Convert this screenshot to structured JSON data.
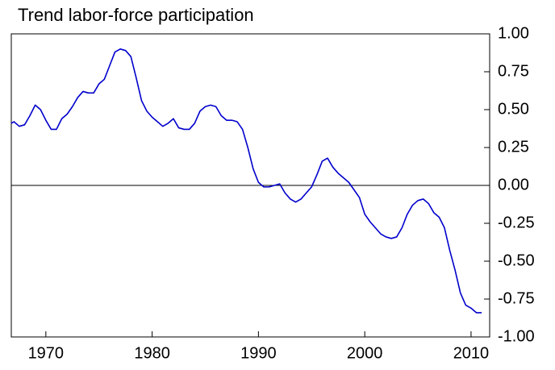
{
  "chart_data": {
    "type": "line",
    "title": "Trend labor-force participation",
    "x": [
      1966.75,
      1967,
      1967.5,
      1968,
      1968.5,
      1969,
      1969.5,
      1970,
      1970.5,
      1971,
      1971.5,
      1972,
      1972.5,
      1973,
      1973.5,
      1974,
      1974.5,
      1975,
      1975.5,
      1976,
      1976.5,
      1977,
      1977.5,
      1978,
      1978.5,
      1979,
      1979.5,
      1980,
      1980.5,
      1981,
      1981.5,
      1982,
      1982.5,
      1983,
      1983.5,
      1984,
      1984.5,
      1985,
      1985.5,
      1986,
      1986.5,
      1987,
      1987.5,
      1988,
      1988.5,
      1989,
      1989.5,
      1990,
      1990.5,
      1991,
      1991.5,
      1992,
      1992.5,
      1993,
      1993.5,
      1994,
      1994.5,
      1995,
      1995.5,
      1996,
      1996.5,
      1997,
      1997.5,
      1998,
      1998.5,
      1999,
      1999.5,
      2000,
      2000.5,
      2001,
      2001.5,
      2002,
      2002.5,
      2003,
      2003.5,
      2004,
      2004.5,
      2005,
      2005.5,
      2006,
      2006.5,
      2007,
      2007.5,
      2008,
      2008.5,
      2009,
      2009.5,
      2010,
      2010.5,
      2011
    ],
    "series": [
      {
        "color": "#0000cc",
        "values": [
          0.41,
          0.42,
          0.39,
          0.4,
          0.46,
          0.53,
          0.5,
          0.43,
          0.37,
          0.37,
          0.44,
          0.47,
          0.52,
          0.58,
          0.62,
          0.61,
          0.61,
          0.67,
          0.7,
          0.79,
          0.88,
          0.9,
          0.89,
          0.85,
          0.71,
          0.56,
          0.49,
          0.45,
          0.42,
          0.39,
          0.41,
          0.44,
          0.38,
          0.37,
          0.37,
          0.41,
          0.49,
          0.52,
          0.53,
          0.52,
          0.46,
          0.43,
          0.43,
          0.42,
          0.37,
          0.25,
          0.11,
          0.02,
          -0.01,
          -0.01,
          0.0,
          0.01,
          -0.05,
          -0.09,
          -0.11,
          -0.09,
          -0.05,
          -0.01,
          0.07,
          0.16,
          0.18,
          0.12,
          0.08,
          0.05,
          0.02,
          -0.03,
          -0.08,
          -0.19,
          -0.24,
          -0.28,
          -0.32,
          -0.34,
          -0.35,
          -0.34,
          -0.28,
          -0.19,
          -0.13,
          -0.1,
          -0.09,
          -0.12,
          -0.18,
          -0.21,
          -0.28,
          -0.43,
          -0.56,
          -0.71,
          -0.79,
          -0.81,
          -0.84,
          -0.84
        ]
      }
    ],
    "xlim": [
      1966.75,
      2011.75
    ],
    "xticks": [
      1970,
      1980,
      1990,
      2000,
      2010
    ],
    "ylim": [
      -1,
      1
    ],
    "yticks": [
      {
        "value": 1,
        "label": "1.00"
      },
      {
        "value": 0.75,
        "label": "0.75"
      },
      {
        "value": 0.5,
        "label": "0.50"
      },
      {
        "value": 0.25,
        "label": "0.25"
      },
      {
        "value": 0,
        "label": "0.00"
      },
      {
        "value": -0.25,
        "label": "-0.25"
      },
      {
        "value": -0.5,
        "label": "-0.50"
      },
      {
        "value": -0.75,
        "label": "-0.75"
      },
      {
        "value": -1,
        "label": "-1.00"
      }
    ],
    "y_axis_side": "right",
    "zero_line": true
  }
}
